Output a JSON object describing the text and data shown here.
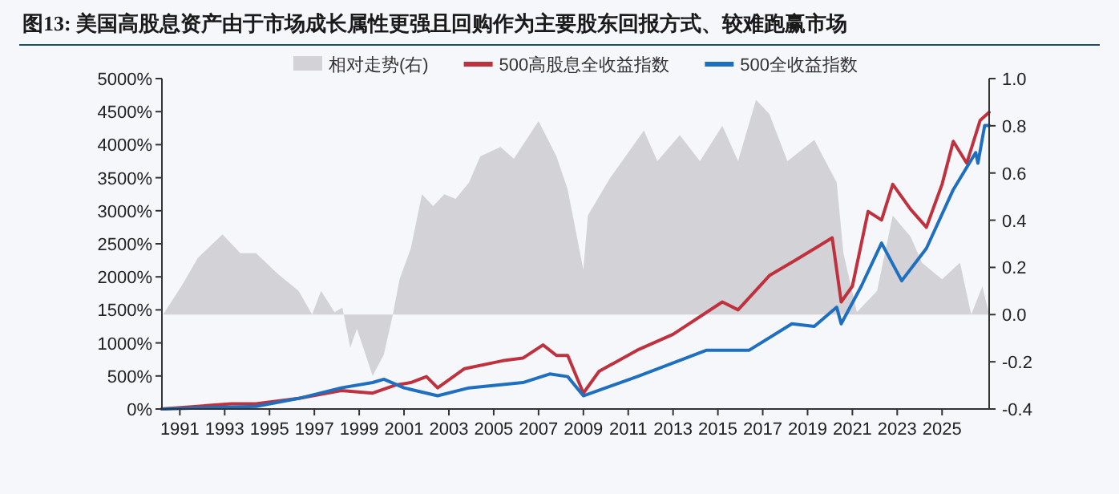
{
  "chart_data": {
    "type": "line",
    "title": "图13: 美国高股息资产由于市场成长属性更强且回购作为主要股东回报方式、较难跑赢市场",
    "xlim": [
      1990.2,
      2027.1
    ],
    "xticks": [
      1991,
      1993,
      1995,
      1997,
      1999,
      2001,
      2003,
      2005,
      2007,
      2009,
      2011,
      2013,
      2015,
      2017,
      2019,
      2021,
      2023,
      2025
    ],
    "ylim": [
      0,
      5000
    ],
    "yticks": [
      {
        "value": 0,
        "label": "0%"
      },
      {
        "value": 500,
        "label": "500%"
      },
      {
        "value": 1000,
        "label": "1000%"
      },
      {
        "value": 1500,
        "label": "1500%"
      },
      {
        "value": 2000,
        "label": "2000%"
      },
      {
        "value": 2500,
        "label": "2500%"
      },
      {
        "value": 3000,
        "label": "3000%"
      },
      {
        "value": 3500,
        "label": "3500%"
      },
      {
        "value": 4000,
        "label": "4000%"
      },
      {
        "value": 4500,
        "label": "4500%"
      },
      {
        "value": 5000,
        "label": "5000%"
      }
    ],
    "y2lim": [
      -0.4,
      1.0
    ],
    "y2ticks": [
      {
        "value": -0.4,
        "label": "-0.4"
      },
      {
        "value": -0.2,
        "label": "-0.2"
      },
      {
        "value": 0,
        "label": "0.0"
      },
      {
        "value": 0.2,
        "label": "0.2"
      },
      {
        "value": 0.4,
        "label": "0.4"
      },
      {
        "value": 0.6,
        "label": "0.6"
      },
      {
        "value": 0.8,
        "label": "0.8"
      },
      {
        "value": 1.0,
        "label": "1.0"
      }
    ],
    "legend": "top",
    "grid": false,
    "series": [
      {
        "name": "相对走势(右)",
        "type": "area",
        "axis": "y2",
        "color": "#d3d3d7",
        "x": [
          1990.25,
          1991.1,
          1991.8,
          1992.9,
          1993.7,
          1994.4,
          1995.4,
          1996.3,
          1996.9,
          1997.3,
          1997.9,
          1998.25,
          1998.6,
          1998.9,
          1999.6,
          2000.1,
          2000.5,
          2000.8,
          2001.3,
          2001.8,
          2002.3,
          2002.8,
          2003.3,
          2003.9,
          2004.4,
          2005.3,
          2005.9,
          2007.0,
          2007.8,
          2008.3,
          2009.0,
          2009.2,
          2010.2,
          2011.7,
          2012.3,
          2013.3,
          2014.2,
          2015.2,
          2015.9,
          2016.7,
          2017.3,
          2018.1,
          2019.3,
          2020.3,
          2020.6,
          2021.2,
          2022.1,
          2022.8,
          2023.6,
          2024.1,
          2025.0,
          2025.8,
          2026.3,
          2026.8,
          2027.1
        ],
        "values": [
          0,
          0.125,
          0.24,
          0.34,
          0.26,
          0.26,
          0.17,
          0.1,
          0,
          0.1,
          0.01,
          0.03,
          -0.14,
          -0.06,
          -0.26,
          -0.17,
          0,
          0.15,
          0.28,
          0.51,
          0.46,
          0.51,
          0.49,
          0.56,
          0.67,
          0.71,
          0.66,
          0.82,
          0.67,
          0.53,
          0.19,
          0.42,
          0.58,
          0.78,
          0.65,
          0.76,
          0.65,
          0.8,
          0.65,
          0.91,
          0.85,
          0.65,
          0.74,
          0.56,
          0.26,
          0.01,
          0.1,
          0.42,
          0.33,
          0.22,
          0.15,
          0.22,
          0,
          0.12,
          0
        ]
      },
      {
        "name": "500高股息全收益指数",
        "type": "line",
        "color": "#c0313e",
        "x": [
          1990.2,
          1993.3,
          1994.4,
          1996.3,
          1998.2,
          1999.6,
          2000.6,
          2001.3,
          2002.0,
          2002.5,
          2003.7,
          2005.4,
          2006.3,
          2007.2,
          2007.8,
          2008.3,
          2009.0,
          2009.7,
          2011.4,
          2013.0,
          2015.2,
          2015.9,
          2017.3,
          2018.5,
          2020.1,
          2020.5,
          2021.0,
          2021.7,
          2022.3,
          2022.8,
          2023.6,
          2024.3,
          2025.0,
          2025.5,
          2026.1,
          2026.7,
          2027.1
        ],
        "values": [
          0,
          80,
          80,
          160,
          280,
          240,
          360,
          400,
          490,
          320,
          610,
          730,
          770,
          970,
          810,
          810,
          240,
          570,
          890,
          1130,
          1620,
          1500,
          2020,
          2260,
          2590,
          1620,
          1860,
          2990,
          2860,
          3400,
          3020,
          2750,
          3400,
          4050,
          3720,
          4370,
          4490
        ]
      },
      {
        "name": "500全收益指数",
        "type": "line",
        "color": "#1f6fc1",
        "x": [
          1990.2,
          1994.4,
          1996.3,
          1998.2,
          1999.6,
          2000.1,
          2001.0,
          2002.5,
          2003.9,
          2006.3,
          2007.5,
          2008.3,
          2009.0,
          2011.4,
          2014.5,
          2016.4,
          2018.3,
          2019.3,
          2020.3,
          2020.5,
          2021.4,
          2022.3,
          2023.2,
          2024.3,
          2025.5,
          2026.5,
          2026.6,
          2026.9,
          2027.1
        ],
        "values": [
          0,
          40,
          160,
          320,
          400,
          450,
          320,
          200,
          320,
          400,
          530,
          490,
          200,
          490,
          890,
          890,
          1290,
          1250,
          1540,
          1290,
          1860,
          2510,
          1940,
          2430,
          3320,
          3880,
          3720,
          4290,
          4290
        ]
      }
    ]
  }
}
